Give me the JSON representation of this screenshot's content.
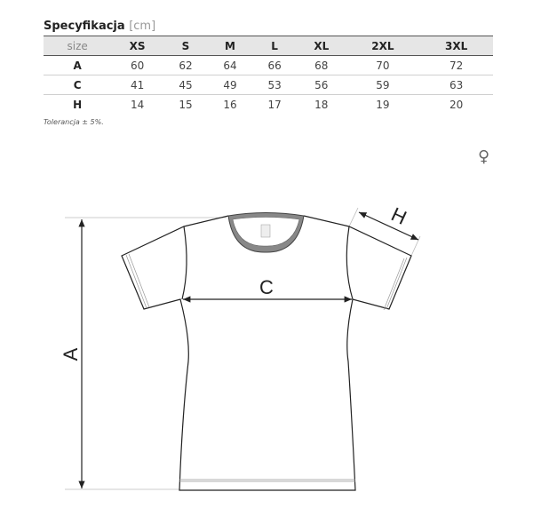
{
  "title": "Specyfikacja",
  "unit": "[cm]",
  "table": {
    "header_label": "size",
    "sizes": [
      "XS",
      "S",
      "M",
      "L",
      "XL",
      "2XL",
      "3XL"
    ],
    "rows": [
      {
        "label": "A",
        "values": [
          "60",
          "62",
          "64",
          "66",
          "68",
          "70",
          "72"
        ]
      },
      {
        "label": "C",
        "values": [
          "41",
          "45",
          "49",
          "53",
          "56",
          "59",
          "63"
        ]
      },
      {
        "label": "H",
        "values": [
          "14",
          "15",
          "16",
          "17",
          "18",
          "19",
          "20"
        ]
      }
    ]
  },
  "tolerance": "Tolerancja ± 5%.",
  "gender_icon": "female-symbol-icon",
  "gender_symbol": "♀",
  "diagram": {
    "label_a": "A",
    "label_c": "C",
    "label_h": "H"
  }
}
